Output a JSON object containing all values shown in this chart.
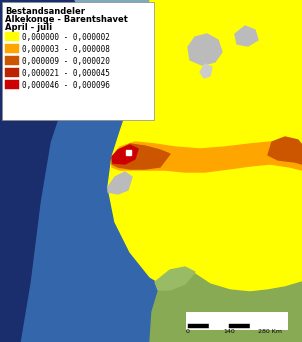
{
  "title_lines": [
    "Bestandsandeler",
    "Alkekonge - Barentshavet",
    "April - juli"
  ],
  "legend_entries": [
    {
      "color": "#FFFF00",
      "label": "0,000000 - 0,000002"
    },
    {
      "color": "#FFA500",
      "label": "0,000003 - 0,000008"
    },
    {
      "color": "#CC5500",
      "label": "0,000009 - 0,000020"
    },
    {
      "color": "#BB2200",
      "label": "0,000021 - 0,000045"
    },
    {
      "color": "#CC0000",
      "label": "0,000046 - 0,000096"
    }
  ],
  "title_fontsize": 6.0,
  "legend_fontsize": 5.5,
  "figsize": [
    3.02,
    3.42
  ],
  "dpi": 100
}
